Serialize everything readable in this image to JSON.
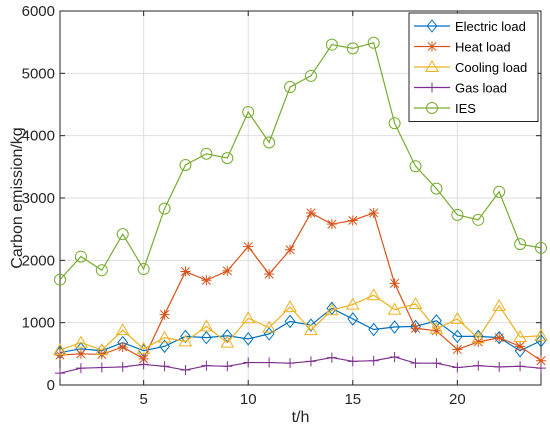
{
  "chart_data": {
    "type": "line",
    "xlabel": "t/h",
    "ylabel": "Carbon emission/kg",
    "xlim": [
      1,
      24
    ],
    "ylim": [
      0,
      6000
    ],
    "x_ticks": [
      5,
      10,
      15,
      20
    ],
    "y_ticks": [
      0,
      1000,
      2000,
      3000,
      4000,
      5000,
      6000
    ],
    "grid": true,
    "legend_position": "top-right",
    "x": [
      1,
      2,
      3,
      4,
      5,
      6,
      7,
      8,
      9,
      10,
      11,
      12,
      13,
      14,
      15,
      16,
      17,
      18,
      19,
      20,
      21,
      22,
      23,
      24
    ],
    "series": [
      {
        "name": "Electric load",
        "color": "#0072BD",
        "marker": "diamond",
        "values": [
          520,
          580,
          550,
          680,
          550,
          620,
          780,
          760,
          790,
          740,
          820,
          1020,
          960,
          1230,
          1060,
          890,
          930,
          940,
          1030,
          780,
          780,
          760,
          550,
          710
        ]
      },
      {
        "name": "Heat load",
        "color": "#D95319",
        "marker": "asterisk",
        "values": [
          480,
          500,
          490,
          610,
          420,
          1130,
          1820,
          1680,
          1830,
          2220,
          1780,
          2170,
          2760,
          2580,
          2640,
          2760,
          1630,
          910,
          870,
          570,
          690,
          760,
          620,
          390
        ]
      },
      {
        "name": "Cooling load",
        "color": "#EDB120",
        "marker": "triangle",
        "values": [
          560,
          680,
          560,
          880,
          580,
          760,
          700,
          940,
          680,
          1070,
          920,
          1250,
          880,
          1200,
          1290,
          1440,
          1210,
          1300,
          900,
          1060,
          750,
          1270,
          770,
          790
        ]
      },
      {
        "name": "Gas load",
        "color": "#7E2F8E",
        "marker": "plus",
        "values": [
          190,
          270,
          280,
          290,
          330,
          300,
          240,
          310,
          300,
          360,
          360,
          350,
          380,
          440,
          380,
          390,
          450,
          350,
          350,
          280,
          310,
          290,
          300,
          270
        ]
      },
      {
        "name": "IES",
        "color": "#77AC30",
        "marker": "circle",
        "values": [
          1690,
          2060,
          1840,
          2420,
          1860,
          2830,
          3530,
          3710,
          3640,
          4380,
          3890,
          4780,
          4960,
          5460,
          5400,
          5490,
          4200,
          3510,
          3150,
          2730,
          2650,
          3100,
          2260,
          2200
        ]
      }
    ]
  }
}
